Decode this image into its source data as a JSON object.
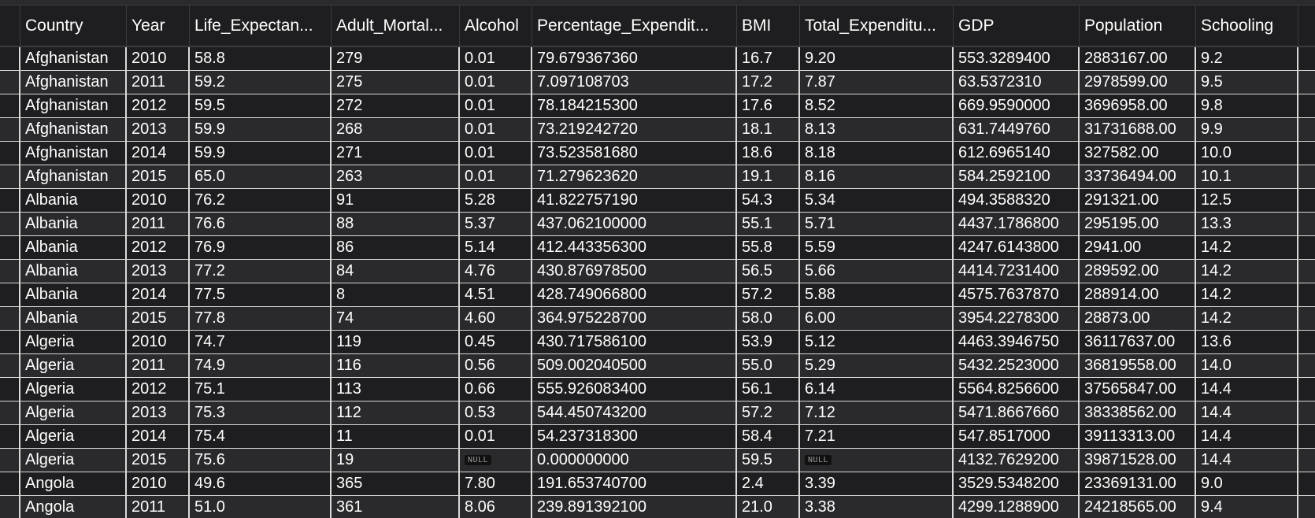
{
  "columns": [
    {
      "key": "country",
      "label": "Country"
    },
    {
      "key": "year",
      "label": "Year"
    },
    {
      "key": "life",
      "label": "Life_Expectan..."
    },
    {
      "key": "adult",
      "label": "Adult_Mortal..."
    },
    {
      "key": "alcohol",
      "label": "Alcohol"
    },
    {
      "key": "pct",
      "label": "Percentage_Expendit..."
    },
    {
      "key": "bmi",
      "label": "BMI"
    },
    {
      "key": "total",
      "label": "Total_Expenditu..."
    },
    {
      "key": "gdp",
      "label": "GDP"
    },
    {
      "key": "pop",
      "label": "Population"
    },
    {
      "key": "school",
      "label": "Schooling"
    }
  ],
  "null_label": "NULL",
  "rows": [
    [
      "Afghanistan",
      "2010",
      "58.8",
      "279",
      "0.01",
      "79.679367360",
      "16.7",
      "9.20",
      "553.3289400",
      "2883167.00",
      "9.2"
    ],
    [
      "Afghanistan",
      "2011",
      "59.2",
      "275",
      "0.01",
      "7.097108703",
      "17.2",
      "7.87",
      "63.5372310",
      "2978599.00",
      "9.5"
    ],
    [
      "Afghanistan",
      "2012",
      "59.5",
      "272",
      "0.01",
      "78.184215300",
      "17.6",
      "8.52",
      "669.9590000",
      "3696958.00",
      "9.8"
    ],
    [
      "Afghanistan",
      "2013",
      "59.9",
      "268",
      "0.01",
      "73.219242720",
      "18.1",
      "8.13",
      "631.7449760",
      "31731688.00",
      "9.9"
    ],
    [
      "Afghanistan",
      "2014",
      "59.9",
      "271",
      "0.01",
      "73.523581680",
      "18.6",
      "8.18",
      "612.6965140",
      "327582.00",
      "10.0"
    ],
    [
      "Afghanistan",
      "2015",
      "65.0",
      "263",
      "0.01",
      "71.279623620",
      "19.1",
      "8.16",
      "584.2592100",
      "33736494.00",
      "10.1"
    ],
    [
      "Albania",
      "2010",
      "76.2",
      "91",
      "5.28",
      "41.822757190",
      "54.3",
      "5.34",
      "494.3588320",
      "291321.00",
      "12.5"
    ],
    [
      "Albania",
      "2011",
      "76.6",
      "88",
      "5.37",
      "437.062100000",
      "55.1",
      "5.71",
      "4437.1786800",
      "295195.00",
      "13.3"
    ],
    [
      "Albania",
      "2012",
      "76.9",
      "86",
      "5.14",
      "412.443356300",
      "55.8",
      "5.59",
      "4247.6143800",
      "2941.00",
      "14.2"
    ],
    [
      "Albania",
      "2013",
      "77.2",
      "84",
      "4.76",
      "430.876978500",
      "56.5",
      "5.66",
      "4414.7231400",
      "289592.00",
      "14.2"
    ],
    [
      "Albania",
      "2014",
      "77.5",
      "8",
      "4.51",
      "428.749066800",
      "57.2",
      "5.88",
      "4575.7637870",
      "288914.00",
      "14.2"
    ],
    [
      "Albania",
      "2015",
      "77.8",
      "74",
      "4.60",
      "364.975228700",
      "58.0",
      "6.00",
      "3954.2278300",
      "28873.00",
      "14.2"
    ],
    [
      "Algeria",
      "2010",
      "74.7",
      "119",
      "0.45",
      "430.717586100",
      "53.9",
      "5.12",
      "4463.3946750",
      "36117637.00",
      "13.6"
    ],
    [
      "Algeria",
      "2011",
      "74.9",
      "116",
      "0.56",
      "509.002040500",
      "55.0",
      "5.29",
      "5432.2523000",
      "36819558.00",
      "14.0"
    ],
    [
      "Algeria",
      "2012",
      "75.1",
      "113",
      "0.66",
      "555.926083400",
      "56.1",
      "6.14",
      "5564.8256600",
      "37565847.00",
      "14.4"
    ],
    [
      "Algeria",
      "2013",
      "75.3",
      "112",
      "0.53",
      "544.450743200",
      "57.2",
      "7.12",
      "5471.8667660",
      "38338562.00",
      "14.4"
    ],
    [
      "Algeria",
      "2014",
      "75.4",
      "11",
      "0.01",
      "54.237318300",
      "58.4",
      "7.21",
      "547.8517000",
      "39113313.00",
      "14.4"
    ],
    [
      "Algeria",
      "2015",
      "75.6",
      "19",
      null,
      "0.000000000",
      "59.5",
      null,
      "4132.7629200",
      "39871528.00",
      "14.4"
    ],
    [
      "Angola",
      "2010",
      "49.6",
      "365",
      "7.80",
      "191.653740700",
      "2.4",
      "3.39",
      "3529.5348200",
      "23369131.00",
      "9.0"
    ],
    [
      "Angola",
      "2011",
      "51.0",
      "361",
      "8.06",
      "239.891392100",
      "21.0",
      "3.38",
      "4299.1288900",
      "24218565.00",
      "9.4"
    ]
  ]
}
